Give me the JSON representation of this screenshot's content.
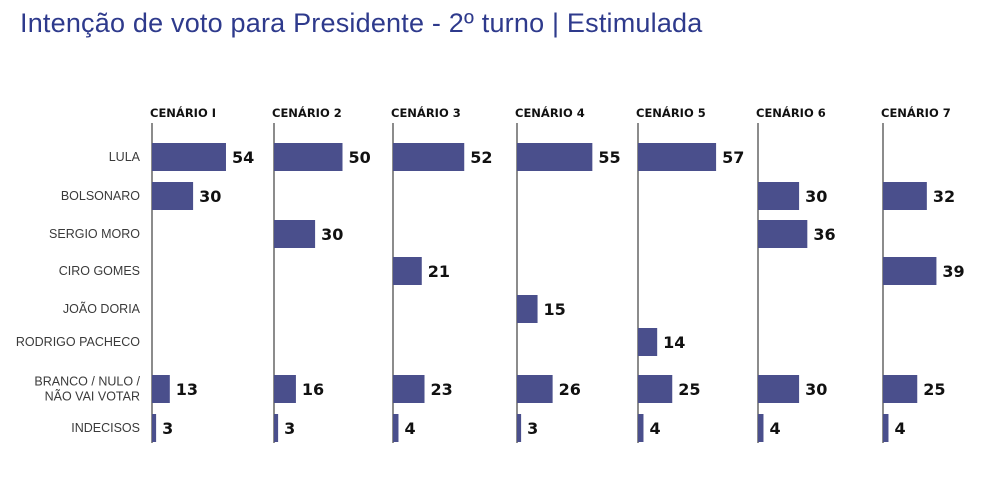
{
  "title": "Intenção de voto para Presidente - 2º turno | Estimulada",
  "colors": {
    "title": "#2e3a8c",
    "bar": "#4a4f8c",
    "axis": "#666666",
    "text": "#111111"
  },
  "chart_data": {
    "type": "bar",
    "orientation": "horizontal",
    "title": "Intenção de voto para Presidente - 2º turno | Estimulada",
    "xlabel": "",
    "ylabel": "",
    "grid": false,
    "categories": [
      "LULA",
      "BOLSONARO",
      "SERGIO MORO",
      "CIRO GOMES",
      "JOÃO DORIA",
      "RODRIGO PACHECO",
      "BRANCO / NULO / NÃO VAI VOTAR",
      "INDECISOS"
    ],
    "category_lines": [
      [
        "LULA"
      ],
      [
        "BOLSONARO"
      ],
      [
        "SERGIO MORO"
      ],
      [
        "CIRO GOMES"
      ],
      [
        "JOÃO DORIA"
      ],
      [
        "RODRIGO PACHECO"
      ],
      [
        "BRANCO / NULO /",
        "NÃO VAI VOTAR"
      ],
      [
        "INDECISOS"
      ]
    ],
    "series": [
      {
        "name": "CENÁRIO 1",
        "label": "CENÁRIO I",
        "values": [
          54,
          30,
          null,
          null,
          null,
          null,
          13,
          3
        ]
      },
      {
        "name": "CENÁRIO 2",
        "label": "CENÁRIO 2",
        "values": [
          50,
          null,
          30,
          null,
          null,
          null,
          16,
          3
        ]
      },
      {
        "name": "CENÁRIO 3",
        "label": "CENÁRIO 3",
        "values": [
          52,
          null,
          null,
          21,
          null,
          null,
          23,
          4
        ]
      },
      {
        "name": "CENÁRIO 4",
        "label": "CENÁRIO 4",
        "values": [
          55,
          null,
          null,
          null,
          15,
          null,
          26,
          3
        ]
      },
      {
        "name": "CENÁRIO 5",
        "label": "CENÁRIO 5",
        "values": [
          57,
          null,
          null,
          null,
          null,
          14,
          25,
          4
        ]
      },
      {
        "name": "CENÁRIO 6",
        "label": "CENÁRIO 6",
        "values": [
          null,
          30,
          36,
          null,
          null,
          null,
          30,
          4
        ]
      },
      {
        "name": "CENÁRIO 7",
        "label": "CENÁRIO 7",
        "values": [
          null,
          32,
          null,
          39,
          null,
          null,
          25,
          4
        ]
      }
    ],
    "xlim": [
      0,
      60
    ],
    "unit": "%"
  }
}
